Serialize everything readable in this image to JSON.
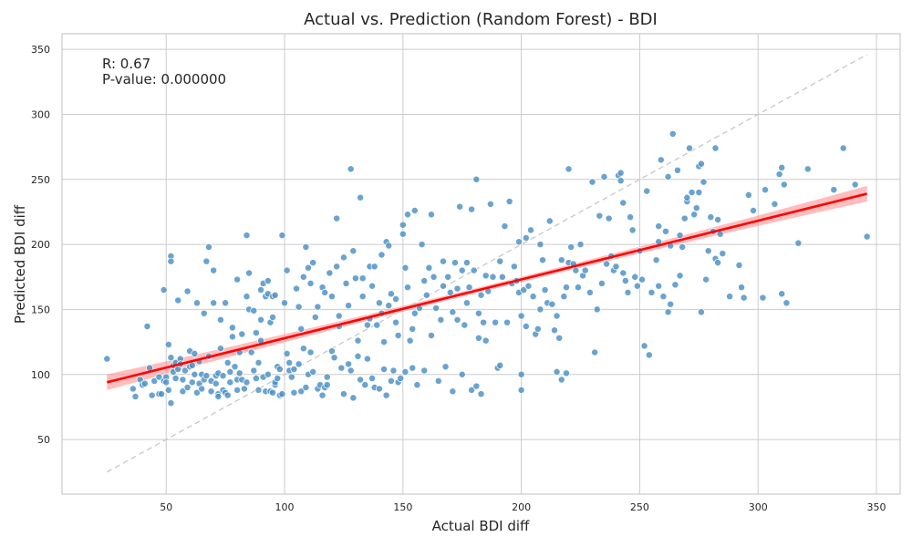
{
  "chart_data": {
    "type": "scatter",
    "title": "Actual vs. Prediction (Random Forest) - BDI",
    "xlabel": "Actual BDI diff",
    "ylabel": "Predicted BDI diff",
    "xlim": [
      6,
      360
    ],
    "ylim": [
      8,
      362
    ],
    "x_ticks": [
      50,
      100,
      150,
      200,
      250,
      300,
      350
    ],
    "y_ticks": [
      50,
      100,
      150,
      200,
      250,
      300,
      350
    ],
    "grid": true,
    "annotations": {
      "r_text": "R: 0.67",
      "p_text": "P-value: 0.000000"
    },
    "colors": {
      "points": "#4a8fc4",
      "regression_line": "#ff0000",
      "confidence_band": "#ff9999",
      "identity_line": "#c8c8c8"
    },
    "regression": {
      "x": [
        25,
        346
      ],
      "y": [
        94,
        239
      ],
      "ci_halfwidth_ends": 6,
      "ci_halfwidth_center": 2
    },
    "identity_line": {
      "x": [
        25,
        346
      ],
      "y": [
        25,
        346
      ]
    },
    "points": [
      [
        25,
        112
      ],
      [
        36,
        89
      ],
      [
        37,
        83
      ],
      [
        39,
        96
      ],
      [
        40,
        92
      ],
      [
        41,
        93
      ],
      [
        42,
        137
      ],
      [
        43,
        105
      ],
      [
        44,
        84
      ],
      [
        45,
        95
      ],
      [
        47,
        98
      ],
      [
        47,
        85
      ],
      [
        48,
        85
      ],
      [
        49,
        165
      ],
      [
        49,
        95
      ],
      [
        50,
        98
      ],
      [
        50,
        94
      ],
      [
        51,
        88
      ],
      [
        51,
        123
      ],
      [
        52,
        113
      ],
      [
        52,
        191
      ],
      [
        52,
        187
      ],
      [
        52,
        78
      ],
      [
        53,
        107
      ],
      [
        53,
        102
      ],
      [
        54,
        97
      ],
      [
        54,
        109
      ],
      [
        55,
        157
      ],
      [
        55,
        104
      ],
      [
        56,
        112
      ],
      [
        56,
        108
      ],
      [
        57,
        96
      ],
      [
        57,
        87
      ],
      [
        58,
        103
      ],
      [
        59,
        164
      ],
      [
        59,
        90
      ],
      [
        60,
        118
      ],
      [
        60,
        106
      ],
      [
        61,
        107
      ],
      [
        61,
        94
      ],
      [
        62,
        100
      ],
      [
        62,
        116
      ],
      [
        63,
        86
      ],
      [
        63,
        155
      ],
      [
        64,
        93
      ],
      [
        64,
        110
      ],
      [
        65,
        100
      ],
      [
        65,
        89
      ],
      [
        66,
        96
      ],
      [
        66,
        147
      ],
      [
        67,
        187
      ],
      [
        67,
        99
      ],
      [
        68,
        114
      ],
      [
        68,
        198
      ],
      [
        69,
        95
      ],
      [
        69,
        87
      ],
      [
        70,
        155
      ],
      [
        70,
        180
      ],
      [
        71,
        99
      ],
      [
        71,
        93
      ],
      [
        72,
        85
      ],
      [
        72,
        83
      ],
      [
        72,
        101
      ],
      [
        73,
        142
      ],
      [
        73,
        120
      ],
      [
        74,
        88
      ],
      [
        74,
        99
      ],
      [
        75,
        155
      ],
      [
        75,
        86
      ],
      [
        76,
        109
      ],
      [
        76,
        84
      ],
      [
        77,
        94
      ],
      [
        77,
        102
      ],
      [
        78,
        136
      ],
      [
        78,
        129
      ],
      [
        79,
        106
      ],
      [
        80,
        173
      ],
      [
        80,
        96
      ],
      [
        80,
        88
      ],
      [
        81,
        101
      ],
      [
        81,
        117
      ],
      [
        82,
        96
      ],
      [
        82,
        131
      ],
      [
        83,
        89
      ],
      [
        84,
        207
      ],
      [
        84,
        160
      ],
      [
        84,
        94
      ],
      [
        85,
        178
      ],
      [
        85,
        150
      ],
      [
        86,
        117
      ],
      [
        87,
        149
      ],
      [
        87,
        103
      ],
      [
        88,
        132
      ],
      [
        88,
        97
      ],
      [
        89,
        109
      ],
      [
        89,
        88
      ],
      [
        90,
        142
      ],
      [
        90,
        126
      ],
      [
        90,
        165
      ],
      [
        91,
        170
      ],
      [
        91,
        98
      ],
      [
        92,
        160
      ],
      [
        92,
        87
      ],
      [
        93,
        162
      ],
      [
        93,
        172
      ],
      [
        93,
        100
      ],
      [
        94,
        87
      ],
      [
        94,
        140
      ],
      [
        95,
        144
      ],
      [
        95,
        160
      ],
      [
        95,
        86
      ],
      [
        96,
        161
      ],
      [
        96,
        92
      ],
      [
        96,
        94
      ],
      [
        97,
        106
      ],
      [
        97,
        97
      ],
      [
        98,
        84
      ],
      [
        98,
        104
      ],
      [
        99,
        207
      ],
      [
        99,
        85
      ],
      [
        100,
        155
      ],
      [
        101,
        180
      ],
      [
        101,
        116
      ],
      [
        102,
        103
      ],
      [
        102,
        109
      ],
      [
        103,
        98
      ],
      [
        104,
        104
      ],
      [
        104,
        86
      ],
      [
        105,
        166
      ],
      [
        106,
        108
      ],
      [
        106,
        152
      ],
      [
        107,
        135
      ],
      [
        107,
        87
      ],
      [
        108,
        175
      ],
      [
        108,
        120
      ],
      [
        109,
        198
      ],
      [
        109,
        90
      ],
      [
        110,
        100
      ],
      [
        110,
        182
      ],
      [
        111,
        170
      ],
      [
        111,
        117
      ],
      [
        112,
        186
      ],
      [
        112,
        102
      ],
      [
        113,
        144
      ],
      [
        114,
        89
      ],
      [
        114,
        152
      ],
      [
        115,
        92
      ],
      [
        116,
        167
      ],
      [
        116,
        84
      ],
      [
        117,
        163
      ],
      [
        117,
        90
      ],
      [
        118,
        98
      ],
      [
        118,
        92
      ],
      [
        119,
        178
      ],
      [
        120,
        160
      ],
      [
        120,
        118
      ],
      [
        121,
        113
      ],
      [
        122,
        220
      ],
      [
        122,
        183
      ],
      [
        123,
        145
      ],
      [
        123,
        137
      ],
      [
        124,
        105
      ],
      [
        125,
        190
      ],
      [
        125,
        85
      ],
      [
        126,
        170
      ],
      [
        127,
        153
      ],
      [
        127,
        108
      ],
      [
        128,
        258
      ],
      [
        128,
        103
      ],
      [
        129,
        195
      ],
      [
        129,
        82
      ],
      [
        130,
        174
      ],
      [
        131,
        126
      ],
      [
        131,
        114
      ],
      [
        132,
        236
      ],
      [
        132,
        96
      ],
      [
        133,
        174
      ],
      [
        133,
        160
      ],
      [
        134,
        92
      ],
      [
        135,
        138
      ],
      [
        135,
        112
      ],
      [
        136,
        143
      ],
      [
        136,
        183
      ],
      [
        137,
        168
      ],
      [
        137,
        97
      ],
      [
        138,
        90
      ],
      [
        138,
        183
      ],
      [
        139,
        138
      ],
      [
        140,
        155
      ],
      [
        140,
        89
      ],
      [
        141,
        147
      ],
      [
        141,
        192
      ],
      [
        142,
        125
      ],
      [
        142,
        104
      ],
      [
        143,
        202
      ],
      [
        143,
        84
      ],
      [
        144,
        199
      ],
      [
        144,
        153
      ],
      [
        145,
        162
      ],
      [
        145,
        95
      ],
      [
        146,
        103
      ],
      [
        147,
        158
      ],
      [
        147,
        140
      ],
      [
        148,
        130
      ],
      [
        148,
        94
      ],
      [
        149,
        97
      ],
      [
        150,
        215
      ],
      [
        150,
        208
      ],
      [
        151,
        182
      ],
      [
        151,
        102
      ],
      [
        152,
        223
      ],
      [
        152,
        167
      ],
      [
        153,
        126
      ],
      [
        154,
        135
      ],
      [
        154,
        105
      ],
      [
        155,
        226
      ],
      [
        155,
        147
      ],
      [
        156,
        92
      ],
      [
        157,
        151
      ],
      [
        158,
        200
      ],
      [
        159,
        172
      ],
      [
        159,
        103
      ],
      [
        160,
        161
      ],
      [
        161,
        182
      ],
      [
        162,
        223
      ],
      [
        162,
        130
      ],
      [
        163,
        175
      ],
      [
        164,
        151
      ],
      [
        165,
        95
      ],
      [
        166,
        142
      ],
      [
        167,
        187
      ],
      [
        167,
        168
      ],
      [
        168,
        106
      ],
      [
        169,
        175
      ],
      [
        170,
        163
      ],
      [
        171,
        148
      ],
      [
        171,
        87
      ],
      [
        172,
        186
      ],
      [
        173,
        166
      ],
      [
        173,
        142
      ],
      [
        174,
        229
      ],
      [
        175,
        180
      ],
      [
        175,
        100
      ],
      [
        176,
        138
      ],
      [
        177,
        155
      ],
      [
        177,
        186
      ],
      [
        178,
        167
      ],
      [
        179,
        227
      ],
      [
        179,
        88
      ],
      [
        180,
        180
      ],
      [
        181,
        250
      ],
      [
        181,
        91
      ],
      [
        182,
        147
      ],
      [
        182,
        128
      ],
      [
        183,
        161
      ],
      [
        183,
        85
      ],
      [
        184,
        140
      ],
      [
        185,
        126
      ],
      [
        185,
        176
      ],
      [
        186,
        164
      ],
      [
        187,
        231
      ],
      [
        188,
        175
      ],
      [
        189,
        140
      ],
      [
        190,
        105
      ],
      [
        191,
        187
      ],
      [
        191,
        107
      ],
      [
        192,
        175
      ],
      [
        193,
        214
      ],
      [
        194,
        140
      ],
      [
        195,
        233
      ],
      [
        196,
        170
      ],
      [
        197,
        183
      ],
      [
        198,
        172
      ],
      [
        199,
        202
      ],
      [
        199,
        163
      ],
      [
        200,
        100
      ],
      [
        200,
        88
      ],
      [
        200,
        145
      ],
      [
        201,
        165
      ],
      [
        202,
        137
      ],
      [
        202,
        205
      ],
      [
        203,
        168
      ],
      [
        204,
        211
      ],
      [
        205,
        160
      ],
      [
        206,
        131
      ],
      [
        207,
        135
      ],
      [
        208,
        150
      ],
      [
        208,
        200
      ],
      [
        209,
        188
      ],
      [
        210,
        165
      ],
      [
        211,
        155
      ],
      [
        212,
        218
      ],
      [
        213,
        154
      ],
      [
        214,
        134
      ],
      [
        215,
        145
      ],
      [
        215,
        102
      ],
      [
        216,
        128
      ],
      [
        217,
        188
      ],
      [
        217,
        96
      ],
      [
        218,
        160
      ],
      [
        219,
        167
      ],
      [
        219,
        101
      ],
      [
        220,
        258
      ],
      [
        220,
        186
      ],
      [
        221,
        198
      ],
      [
        222,
        185
      ],
      [
        223,
        180
      ],
      [
        224,
        167
      ],
      [
        225,
        200
      ],
      [
        226,
        176
      ],
      [
        227,
        180
      ],
      [
        229,
        163
      ],
      [
        230,
        248
      ],
      [
        231,
        117
      ],
      [
        232,
        150
      ],
      [
        233,
        222
      ],
      [
        234,
        170
      ],
      [
        235,
        252
      ],
      [
        236,
        185
      ],
      [
        237,
        220
      ],
      [
        238,
        191
      ],
      [
        239,
        180
      ],
      [
        240,
        183
      ],
      [
        241,
        253
      ],
      [
        242,
        249
      ],
      [
        242,
        255
      ],
      [
        243,
        178
      ],
      [
        244,
        172
      ],
      [
        245,
        163
      ],
      [
        246,
        221
      ],
      [
        247,
        211
      ],
      [
        248,
        175
      ],
      [
        249,
        168
      ],
      [
        250,
        195
      ],
      [
        251,
        173
      ],
      [
        252,
        122
      ],
      [
        253,
        241
      ],
      [
        254,
        115
      ],
      [
        255,
        163
      ],
      [
        257,
        188
      ],
      [
        258,
        202
      ],
      [
        258,
        168
      ],
      [
        259,
        265
      ],
      [
        260,
        160
      ],
      [
        261,
        210
      ],
      [
        262,
        252
      ],
      [
        263,
        154
      ],
      [
        263,
        199
      ],
      [
        264,
        285
      ],
      [
        265,
        169
      ],
      [
        266,
        257
      ],
      [
        267,
        207
      ],
      [
        267,
        176
      ],
      [
        268,
        198
      ],
      [
        269,
        220
      ],
      [
        270,
        233
      ],
      [
        270,
        236
      ],
      [
        271,
        274
      ],
      [
        272,
        240
      ],
      [
        273,
        223
      ],
      [
        274,
        228
      ],
      [
        275,
        260
      ],
      [
        275,
        240
      ],
      [
        276,
        262
      ],
      [
        277,
        248
      ],
      [
        278,
        173
      ],
      [
        279,
        195
      ],
      [
        280,
        221
      ],
      [
        281,
        210
      ],
      [
        282,
        274
      ],
      [
        282,
        189
      ],
      [
        283,
        219
      ],
      [
        283,
        186
      ],
      [
        284,
        208
      ],
      [
        285,
        193
      ],
      [
        288,
        160
      ],
      [
        292,
        184
      ],
      [
        293,
        167
      ],
      [
        294,
        159
      ],
      [
        296,
        238
      ],
      [
        298,
        226
      ],
      [
        302,
        159
      ],
      [
        303,
        242
      ],
      [
        307,
        231
      ],
      [
        309,
        254
      ],
      [
        310,
        259
      ],
      [
        310,
        162
      ],
      [
        311,
        246
      ],
      [
        312,
        155
      ],
      [
        317,
        201
      ],
      [
        321,
        258
      ],
      [
        332,
        242
      ],
      [
        336,
        274
      ],
      [
        341,
        246
      ],
      [
        346,
        206
      ],
      [
        262,
        148
      ],
      [
        258,
        214
      ],
      [
        276,
        148
      ],
      [
        243,
        232
      ]
    ]
  }
}
